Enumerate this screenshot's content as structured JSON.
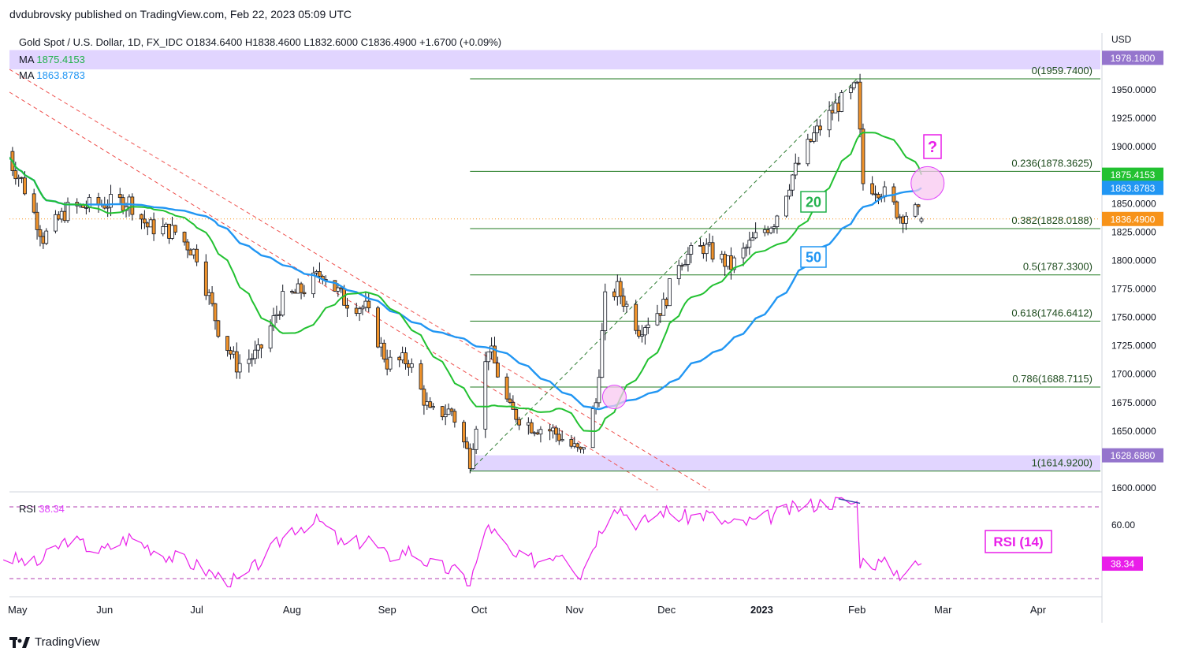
{
  "publisher": "dvdubrovsky published on TradingView.com, Feb 22, 2023 05:09 UTC",
  "footer_brand": "TradingView",
  "legend": {
    "ohlc": "Gold Spot / U.S. Dollar, 1D, FX_IDC  O1834.6400  H1838.4600  L1832.6000  C1836.4900  +1.6700 (+0.09%)",
    "ma1_label": "MA",
    "ma1_value": "1875.4153",
    "ma2_label": "MA",
    "ma2_value": "1863.8783",
    "rsi_label": "RSI",
    "rsi_value": "38.34"
  },
  "colors": {
    "up": "#ffffff",
    "down": "#f0932b",
    "wick": "#131722",
    "ma20": "#22c131",
    "ma50": "#2196f3",
    "fib": "#1f7a1f",
    "rsi": "#e91ee9",
    "trend_red": "#ef5350",
    "trend_green": "#2e7d32",
    "zone": "#e1d5ff",
    "circle": "#f8c8f0"
  },
  "chart_data": {
    "type": "candlestick",
    "title": "Gold Spot / U.S. Dollar, 1D, FX_IDC",
    "currency": "USD",
    "ylim": [
      1600,
      1985
    ],
    "y_ticks": [
      "1950.0000",
      "1925.0000",
      "1900.0000",
      "1875.0000",
      "1850.0000",
      "1825.0000",
      "1800.0000",
      "1775.0000",
      "1750.0000",
      "1725.0000",
      "1700.0000",
      "1675.0000",
      "1650.0000",
      "1600.0000"
    ],
    "x_ticks": [
      "May",
      "Jun",
      "Jul",
      "Aug",
      "Sep",
      "Oct",
      "Nov",
      "Dec",
      "2023",
      "Feb",
      "Mar",
      "Apr"
    ],
    "price_series": [
      [
        "2022-04-29",
        1896
      ],
      [
        "2022-05-05",
        1870
      ],
      [
        "2022-05-12",
        1820
      ],
      [
        "2022-05-20",
        1845
      ],
      [
        "2022-05-31",
        1850
      ],
      [
        "2022-06-09",
        1852
      ],
      [
        "2022-06-15",
        1830
      ],
      [
        "2022-06-24",
        1825
      ],
      [
        "2022-07-01",
        1805
      ],
      [
        "2022-07-08",
        1740
      ],
      [
        "2022-07-14",
        1708
      ],
      [
        "2022-07-21",
        1718
      ],
      [
        "2022-07-29",
        1765
      ],
      [
        "2022-08-05",
        1775
      ],
      [
        "2022-08-11",
        1790
      ],
      [
        "2022-08-18",
        1765
      ],
      [
        "2022-08-25",
        1758
      ],
      [
        "2022-09-01",
        1710
      ],
      [
        "2022-09-08",
        1712
      ],
      [
        "2022-09-15",
        1665
      ],
      [
        "2022-09-22",
        1668
      ],
      [
        "2022-09-28",
        1625
      ],
      [
        "2022-10-04",
        1725
      ],
      [
        "2022-10-11",
        1668
      ],
      [
        "2022-10-18",
        1655
      ],
      [
        "2022-10-25",
        1650
      ],
      [
        "2022-11-03",
        1630
      ],
      [
        "2022-11-08",
        1675
      ],
      [
        "2022-11-11",
        1765
      ],
      [
        "2022-11-15",
        1775
      ],
      [
        "2022-11-22",
        1740
      ],
      [
        "2022-11-30",
        1760
      ],
      [
        "2022-12-05",
        1800
      ],
      [
        "2022-12-13",
        1812
      ],
      [
        "2022-12-22",
        1795
      ],
      [
        "2022-12-30",
        1820
      ],
      [
        "2023-01-05",
        1835
      ],
      [
        "2023-01-11",
        1875
      ],
      [
        "2023-01-18",
        1910
      ],
      [
        "2023-01-25",
        1935
      ],
      [
        "2023-02-01",
        1952
      ],
      [
        "2023-02-03",
        1868
      ],
      [
        "2023-02-09",
        1862
      ],
      [
        "2023-02-15",
        1840
      ],
      [
        "2023-02-20",
        1843
      ],
      [
        "2023-02-22",
        1836.49
      ]
    ],
    "ohlc_last": {
      "open": 1834.64,
      "high": 1838.46,
      "low": 1832.6,
      "close": 1836.49,
      "change": 1.67,
      "change_pct": 0.09
    },
    "ma20_last": 1875.4153,
    "ma50_last": 1863.8783,
    "fib_levels": [
      {
        "ratio": "0",
        "value": 1959.74,
        "label": "0(1959.7400)"
      },
      {
        "ratio": "0.236",
        "value": 1878.3625,
        "label": "0.236(1878.3625)"
      },
      {
        "ratio": "0.382",
        "value": 1828.0188,
        "label": "0.382(1828.0188)"
      },
      {
        "ratio": "0.5",
        "value": 1787.33,
        "label": "0.5(1787.3300)"
      },
      {
        "ratio": "0.618",
        "value": 1746.6412,
        "label": "0.618(1746.6412)"
      },
      {
        "ratio": "0.786",
        "value": 1688.7115,
        "label": "0.786(1688.7115)"
      },
      {
        "ratio": "1",
        "value": 1614.92,
        "label": "1(1614.9200)"
      }
    ],
    "price_labels": [
      {
        "value": 1978.18,
        "text": "1978.1800",
        "color": "#9575cd"
      },
      {
        "value": 1875.4153,
        "text": "1875.4153",
        "color": "#22c131"
      },
      {
        "value": 1863.8783,
        "text": "1863.8783",
        "color": "#2196f3"
      },
      {
        "value": 1836.49,
        "text": "1836.4900",
        "color": "#f7931a"
      },
      {
        "value": 1628.688,
        "text": "1628.6880",
        "color": "#9575cd"
      }
    ],
    "zones": [
      [
        1968,
        1985
      ],
      [
        1614.92,
        1628.688
      ]
    ],
    "annotations": {
      "ma20_tag": "20",
      "ma50_tag": "50",
      "question": "?",
      "rsi_tag": "RSI (14)"
    },
    "rsi": {
      "name": "RSI (14)",
      "last": 38.34,
      "levels": [
        70,
        30
      ],
      "tick": "60.00",
      "series": [
        [
          "2022-04-29",
          42
        ],
        [
          "2022-05-10",
          38
        ],
        [
          "2022-05-20",
          52
        ],
        [
          "2022-05-31",
          45
        ],
        [
          "2022-06-09",
          53
        ],
        [
          "2022-06-20",
          44
        ],
        [
          "2022-06-30",
          38
        ],
        [
          "2022-07-08",
          31
        ],
        [
          "2022-07-15",
          28
        ],
        [
          "2022-07-22",
          40
        ],
        [
          "2022-08-01",
          58
        ],
        [
          "2022-08-10",
          62
        ],
        [
          "2022-08-18",
          48
        ],
        [
          "2022-08-26",
          52
        ],
        [
          "2022-09-01",
          42
        ],
        [
          "2022-09-08",
          46
        ],
        [
          "2022-09-15",
          38
        ],
        [
          "2022-09-23",
          34
        ],
        [
          "2022-09-28",
          28
        ],
        [
          "2022-10-04",
          60
        ],
        [
          "2022-10-12",
          42
        ],
        [
          "2022-10-20",
          40
        ],
        [
          "2022-10-28",
          46
        ],
        [
          "2022-11-03",
          32
        ],
        [
          "2022-11-08",
          52
        ],
        [
          "2022-11-14",
          72
        ],
        [
          "2022-11-22",
          60
        ],
        [
          "2022-11-30",
          68
        ],
        [
          "2022-12-06",
          64
        ],
        [
          "2022-12-14",
          66
        ],
        [
          "2022-12-22",
          60
        ],
        [
          "2022-12-30",
          62
        ],
        [
          "2023-01-06",
          66
        ],
        [
          "2023-01-13",
          70
        ],
        [
          "2023-01-20",
          72
        ],
        [
          "2023-01-27",
          73
        ],
        [
          "2023-02-01",
          72
        ],
        [
          "2023-02-02",
          40
        ],
        [
          "2023-02-10",
          38
        ],
        [
          "2023-02-15",
          33
        ],
        [
          "2023-02-22",
          38.34
        ]
      ]
    }
  }
}
